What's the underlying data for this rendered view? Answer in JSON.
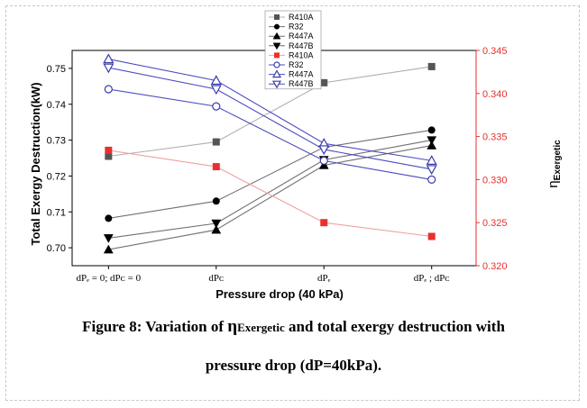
{
  "chart_data": {
    "type": "line",
    "categories": [
      "dPₑ = 0; dPᴄ = 0",
      "dPᴄ",
      "dPₑ",
      "dPₑ ; dPᴄ"
    ],
    "xlabel": "Pressure drop (40 kPa)",
    "ylabel": "Total Exergy Destruction(kW)",
    "y2label": "η",
    "y2label_sub": "Exergetic",
    "ylim": [
      0.695,
      0.755
    ],
    "y2lim": [
      0.32,
      0.345
    ],
    "yticks": [
      0.7,
      0.71,
      0.72,
      0.73,
      0.74,
      0.75
    ],
    "y2ticks": [
      0.32,
      0.325,
      0.33,
      0.335,
      0.34,
      0.345
    ],
    "series": [
      {
        "name": "R410A",
        "axis": "left",
        "marker": "square",
        "color": "#555555",
        "line": "#b0b0b0",
        "values": [
          0.7255,
          0.7295,
          0.746,
          0.7505
        ]
      },
      {
        "name": "R32",
        "axis": "left",
        "marker": "circle",
        "color": "#000000",
        "line": "#707070",
        "values": [
          0.7082,
          0.713,
          0.728,
          0.7328
        ]
      },
      {
        "name": "R447A",
        "axis": "left",
        "marker": "triangle-up",
        "color": "#000000",
        "line": "#707070",
        "values": [
          0.6995,
          0.705,
          0.723,
          0.7285
        ]
      },
      {
        "name": "R447B",
        "axis": "left",
        "marker": "triangle-down",
        "color": "#000000",
        "line": "#707070",
        "values": [
          0.7027,
          0.7068,
          0.7245,
          0.73
        ]
      },
      {
        "name": "R410A",
        "axis": "right",
        "marker": "square",
        "color": "#e8312f",
        "line": "#f0a0a0",
        "values": [
          0.3334,
          0.3315,
          0.325,
          0.3234
        ]
      },
      {
        "name": "R32",
        "axis": "right",
        "marker": "open-circle",
        "color": "#3a3ab0",
        "line": "#4a4ac0",
        "values": [
          0.3405,
          0.3385,
          0.3322,
          0.33
        ]
      },
      {
        "name": "R447A",
        "axis": "right",
        "marker": "open-triangle-up",
        "color": "#3a3ab0",
        "line": "#4a4ac0",
        "values": [
          0.344,
          0.3415,
          0.3342,
          0.3322
        ]
      },
      {
        "name": "R447B",
        "axis": "right",
        "marker": "open-triangle-down",
        "color": "#3a3ab0",
        "line": "#4a4ac0",
        "values": [
          0.343,
          0.3405,
          0.3335,
          0.3312
        ]
      }
    ]
  },
  "caption": {
    "line1_a": "Figure 8: Variation of ",
    "line1_eta": "η",
    "line1_sub": "Exergetic",
    "line1_b": " and total exergy destruction with",
    "line2": "pressure drop  (dP=40kPa)."
  }
}
